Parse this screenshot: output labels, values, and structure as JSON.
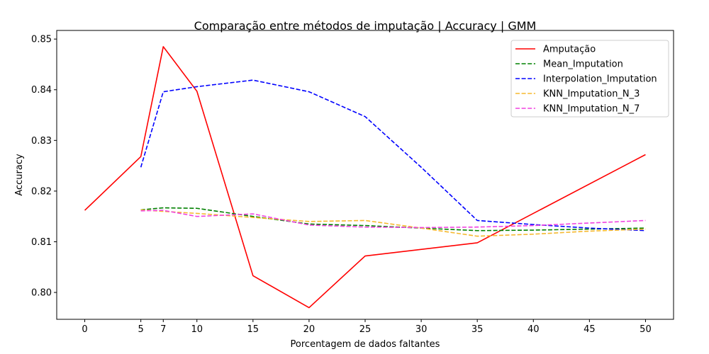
{
  "chart_data": {
    "type": "line",
    "title": "Comparação entre métodos de imputação | Accuracy | GMM",
    "xlabel": "Porcentagem de dados faltantes",
    "ylabel": "Accuracy",
    "xlim": [
      -2.5,
      52.5
    ],
    "ylim": [
      0.7947,
      0.8517
    ],
    "xticks": [
      0,
      5,
      7,
      10,
      15,
      20,
      25,
      30,
      35,
      40,
      45,
      50
    ],
    "yticks": [
      0.8,
      0.81,
      0.82,
      0.83,
      0.84,
      0.85
    ],
    "ytick_labels": [
      "0.80",
      "0.81",
      "0.82",
      "0.83",
      "0.84",
      "0.85"
    ],
    "grid": false,
    "legend_position": "top-right",
    "series": [
      {
        "name": "Amputação",
        "color": "#ff0000",
        "dash": "solid",
        "x": [
          0,
          5,
          7,
          10,
          15,
          20,
          25,
          35,
          50
        ],
        "values": [
          0.8162,
          0.8268,
          0.8485,
          0.8397,
          0.8033,
          0.797,
          0.8072,
          0.8098,
          0.8272
        ]
      },
      {
        "name": "Mean_Imputation",
        "color": "#008000",
        "dash": "dashed",
        "x": [
          5,
          7,
          10,
          15,
          20,
          25,
          30,
          35,
          40,
          45,
          50
        ],
        "values": [
          0.8163,
          0.8167,
          0.8166,
          0.815,
          0.8135,
          0.8132,
          0.8127,
          0.8122,
          0.8123,
          0.8125,
          0.8127
        ]
      },
      {
        "name": "Interpolation_Imputation",
        "color": "#0000ff",
        "dash": "dashed",
        "x": [
          5,
          7,
          10,
          15,
          20,
          25,
          30,
          35,
          40,
          45,
          50
        ],
        "values": [
          0.8247,
          0.8396,
          0.8406,
          0.8419,
          0.8396,
          0.8347,
          0.8247,
          0.8142,
          0.8134,
          0.8127,
          0.8122
        ]
      },
      {
        "name": "KNN_Imputation_N_3",
        "color": "#f5b82e",
        "dash": "dashed",
        "x": [
          5,
          7,
          10,
          15,
          20,
          25,
          30,
          35,
          40,
          45,
          50
        ],
        "values": [
          0.8163,
          0.816,
          0.8156,
          0.8148,
          0.814,
          0.8142,
          0.8127,
          0.8111,
          0.8115,
          0.8121,
          0.8125
        ]
      },
      {
        "name": "KNN_Imputation_N_7",
        "color": "#f042e0",
        "dash": "dashed",
        "x": [
          5,
          7,
          10,
          15,
          20,
          25,
          30,
          35,
          40,
          45,
          50
        ],
        "values": [
          0.8161,
          0.8162,
          0.815,
          0.8155,
          0.8133,
          0.8129,
          0.8128,
          0.8129,
          0.8132,
          0.8137,
          0.8142
        ]
      }
    ]
  }
}
